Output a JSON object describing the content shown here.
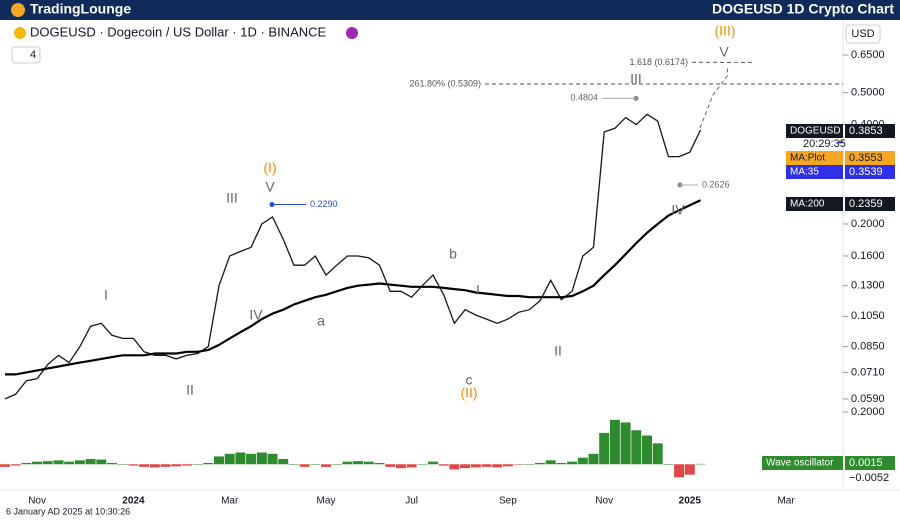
{
  "brand": "TradingLounge",
  "currency": "USD",
  "indicator_count": 4,
  "countdown": "20:29:35",
  "timestamp": "6 January AD 2025 at 10:30:26",
  "chart_data": [
    {
      "type": "line",
      "title": "DOGEUSD 1D Crypto Chart",
      "subtitle": "DOGEUSD · Dogecoin / US Dollar · 1D · BINANCE",
      "log_scale": true,
      "categories": [
        null,
        null,
        null,
        "Nov",
        null,
        null,
        null,
        null,
        null,
        null,
        null,
        null,
        "2024",
        null,
        null,
        null,
        null,
        null,
        null,
        null,
        null,
        "Mar",
        null,
        null,
        null,
        null,
        null,
        null,
        null,
        null,
        "May",
        null,
        null,
        null,
        null,
        null,
        null,
        null,
        "Jul",
        null,
        null,
        null,
        null,
        null,
        null,
        null,
        null,
        "Sep",
        null,
        null,
        null,
        null,
        null,
        null,
        null,
        null,
        "Nov",
        null,
        null,
        null,
        null,
        null,
        null,
        null,
        "2025",
        null,
        null,
        null,
        null,
        null,
        null,
        null,
        null,
        "Mar",
        null,
        null,
        null,
        null
      ],
      "series": [
        {
          "name": "DOGEUSD",
          "color": "#131722",
          "values": [
            0.059,
            0.061,
            0.067,
            0.068,
            0.075,
            0.08,
            0.076,
            0.085,
            0.098,
            0.1,
            0.092,
            0.09,
            0.09,
            0.082,
            0.08,
            0.08,
            0.078,
            0.08,
            0.081,
            0.085,
            0.13,
            0.16,
            0.165,
            0.17,
            0.2,
            0.21,
            0.18,
            0.15,
            0.15,
            0.16,
            0.14,
            0.15,
            0.16,
            0.16,
            0.158,
            0.15,
            0.125,
            0.125,
            0.12,
            0.13,
            0.14,
            0.122,
            0.1,
            0.11,
            0.106,
            0.103,
            0.1,
            0.103,
            0.108,
            0.11,
            0.117,
            0.135,
            0.118,
            0.125,
            0.16,
            0.17,
            0.38,
            0.39,
            0.42,
            0.4,
            0.43,
            0.41,
            0.32,
            0.32,
            0.33,
            0.3853,
            null,
            null,
            null,
            null,
            null,
            null,
            null,
            null,
            null,
            null,
            null,
            null
          ]
        },
        {
          "name": "MA:200",
          "color": "#000000",
          "values": [
            0.07,
            0.07,
            0.071,
            0.072,
            0.073,
            0.074,
            0.075,
            0.076,
            0.077,
            0.078,
            0.079,
            0.08,
            0.08,
            0.08,
            0.081,
            0.081,
            0.081,
            0.082,
            0.082,
            0.083,
            0.086,
            0.09,
            0.094,
            0.098,
            0.103,
            0.107,
            0.11,
            0.114,
            0.117,
            0.12,
            0.122,
            0.125,
            0.128,
            0.13,
            0.131,
            0.132,
            0.131,
            0.13,
            0.129,
            0.129,
            0.129,
            0.128,
            0.127,
            0.126,
            0.124,
            0.123,
            0.122,
            0.121,
            0.121,
            0.12,
            0.12,
            0.12,
            0.12,
            0.121,
            0.125,
            0.13,
            0.14,
            0.15,
            0.162,
            0.175,
            0.188,
            0.2,
            0.212,
            0.22,
            0.228,
            0.2359,
            null,
            null,
            null,
            null,
            null,
            null,
            null,
            null,
            null,
            null,
            null,
            null
          ]
        }
      ],
      "indicators": [
        {
          "name": "MA:Plot",
          "value": 0.3553,
          "color": "#f5a623"
        },
        {
          "name": "MA:35",
          "value": 0.3539,
          "color": "#2f2fe8"
        }
      ],
      "ylim": [
        0.055,
        0.83
      ],
      "yticks": [
        {
          "value": 0.65,
          "label": "0.6500"
        },
        {
          "value": 0.5,
          "label": "0.5000"
        },
        {
          "value": 0.4,
          "label": "0.4000"
        },
        {
          "value": 0.2,
          "label": "0.2000"
        },
        {
          "value": 0.16,
          "label": "0.1600"
        },
        {
          "value": 0.13,
          "label": "0.1300"
        },
        {
          "value": 0.105,
          "label": "0.1050"
        },
        {
          "value": 0.085,
          "label": "0.0850"
        },
        {
          "value": 0.071,
          "label": "0.0710"
        },
        {
          "value": 0.059,
          "label": "0.0590"
        }
      ],
      "levels": [
        {
          "label": "261.80% (0.5309)",
          "value": 0.5309
        },
        {
          "label": "1.618 (0.6174)",
          "value": 0.6174
        }
      ],
      "points": {
        "values": [
          0.229,
          0.4804,
          0.2626
        ],
        "value_labels": [
          "0.2290",
          "0.4804",
          "0.2626"
        ]
      },
      "annotations": [
        {
          "text": "(I)",
          "color": "#f08c00"
        },
        {
          "text": "V",
          "color": "#666666"
        },
        {
          "text": "III",
          "color": "#666666"
        },
        {
          "text": "I",
          "color": "#666666"
        },
        {
          "text": "IV",
          "color": "#666666"
        },
        {
          "text": "II",
          "color": "#666666"
        },
        {
          "text": "a",
          "color": "#666666"
        },
        {
          "text": "b",
          "color": "#666666"
        },
        {
          "text": "I",
          "color": "#666666"
        },
        {
          "text": "c",
          "color": "#666666"
        },
        {
          "text": "(II)",
          "color": "#f08c00"
        },
        {
          "text": "II",
          "color": "#666666"
        },
        {
          "text": "III",
          "color": "#666666"
        },
        {
          "text": "IV",
          "color": "#666666"
        },
        {
          "text": "V",
          "color": "#666666"
        },
        {
          "text": "(III)",
          "color": "#f08c00"
        }
      ]
    },
    {
      "type": "bar",
      "name": "Wave oscillator",
      "colors": {
        "positive": "#2e8b2e",
        "negative": "#e04848"
      },
      "values": [
        -0.01,
        -0.005,
        0.005,
        0.01,
        0.012,
        0.015,
        0.01,
        0.015,
        0.02,
        0.018,
        0.005,
        0,
        -0.005,
        -0.01,
        -0.012,
        -0.01,
        -0.008,
        -0.005,
        0,
        0.005,
        0.03,
        0.04,
        0.045,
        0.04,
        0.045,
        0.04,
        0.02,
        0,
        -0.01,
        0,
        -0.01,
        0,
        0.01,
        0.012,
        0.01,
        0.005,
        -0.01,
        -0.015,
        -0.012,
        0,
        0.01,
        -0.005,
        -0.02,
        -0.015,
        -0.012,
        -0.01,
        -0.012,
        -0.008,
        -0.002,
        0,
        0.005,
        0.015,
        0.005,
        0.01,
        0.025,
        0.04,
        0.12,
        0.17,
        0.16,
        0.13,
        0.11,
        0.08,
        0,
        -0.05,
        -0.04,
        0.0015
      ],
      "ylim": [
        -0.087,
        0.2
      ],
      "yticks": [
        {
          "value": 0.2,
          "label": "0.2000"
        }
      ],
      "low_marker": {
        "value": -0.0052,
        "label": "−0.0052"
      }
    }
  ]
}
